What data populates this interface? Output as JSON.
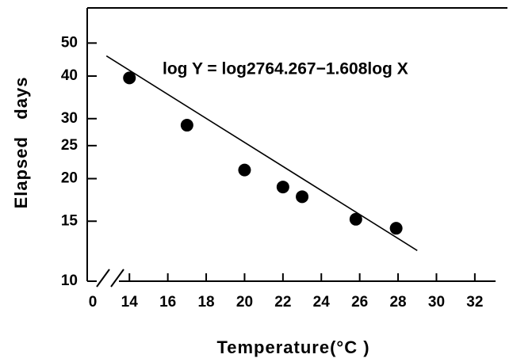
{
  "chart_data": {
    "type": "scatter",
    "annotation": "log Y = log2764.267−1.608log X",
    "xlabel": "Temperature(°C )",
    "ylabel": "Elapsed   days",
    "x": [
      14,
      17,
      20,
      22,
      23,
      25.8,
      27.9
    ],
    "values": [
      39.5,
      28.7,
      21.2,
      18.9,
      17.7,
      15.2,
      14.3
    ],
    "color": "#000000",
    "fit": {
      "intercept": 2764.267,
      "slope": -1.608,
      "x_range": [
        12.8,
        29
      ]
    },
    "xlim": [
      11.8,
      33.7
    ],
    "xticks": [
      0,
      14,
      16,
      18,
      20,
      22,
      24,
      26,
      28,
      30,
      32
    ],
    "axis_break": true,
    "ylim": [
      10,
      63.4
    ],
    "ylog": true,
    "yticks": [
      10,
      15,
      20,
      25,
      30,
      40,
      50
    ],
    "grid": false
  }
}
